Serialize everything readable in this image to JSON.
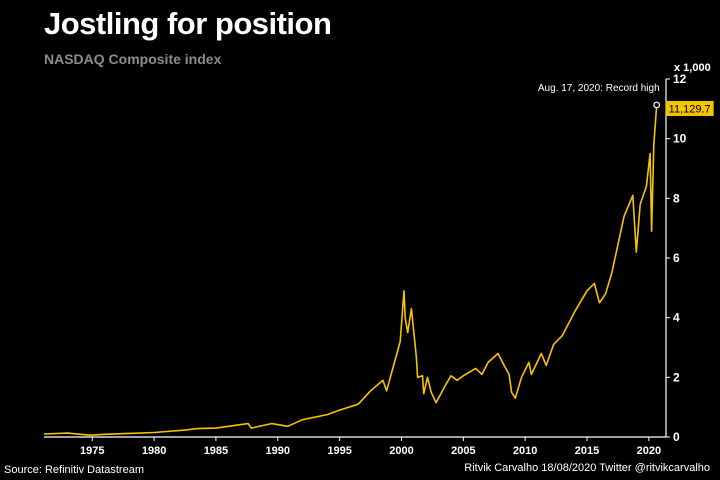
{
  "header": {
    "title": "Jostling for position",
    "subtitle": "NASDAQ Composite index"
  },
  "footer": {
    "source": "Source: Refinitiv Datastream",
    "credit": "Ritvik Carvalho 18/08/2020 Twitter @ritvikcarvalho"
  },
  "colors": {
    "background": "#000000",
    "line": "#f5c400",
    "badge": "#f5c400",
    "subtitle": "#8c8c8c"
  },
  "chart_data": {
    "type": "line",
    "title": "Jostling for position",
    "subtitle": "NASDAQ Composite index",
    "y_unit_label": "x 1,000",
    "xlim": [
      1971.1,
      2020.9
    ],
    "ylim": [
      0,
      12
    ],
    "x_ticks": [
      1975,
      1980,
      1985,
      1990,
      1995,
      2000,
      2005,
      2010,
      2015,
      2020
    ],
    "y_ticks": [
      0,
      2,
      4,
      6,
      8,
      10,
      12
    ],
    "grid": false,
    "annotation": {
      "x": 2020.63,
      "y": 11.1297,
      "text": "Aug. 17, 2020: Record high",
      "value_label": "11,129.7"
    },
    "series": [
      {
        "x": [
          1971.1,
          1973.0,
          1974.8,
          1976.0,
          1978.0,
          1980.0,
          1982.5,
          1983.5,
          1985.0,
          1987.6,
          1987.85,
          1989.5,
          1990.8,
          1992.0,
          1994.0,
          1995.0,
          1996.5,
          1997.5,
          1998.5,
          1998.8,
          1999.5,
          1999.9,
          2000.2,
          2000.3,
          2000.5,
          2000.8,
          2001.2,
          2001.3,
          2001.7,
          2001.8,
          2002.1,
          2002.4,
          2002.8,
          2003.5,
          2004.0,
          2004.5,
          2005.0,
          2006.0,
          2006.5,
          2007.0,
          2007.8,
          2008.3,
          2008.7,
          2008.9,
          2009.2,
          2009.7,
          2010.3,
          2010.5,
          2011.3,
          2011.7,
          2012.3,
          2013.0,
          2014.0,
          2015.0,
          2015.6,
          2016.0,
          2016.5,
          2017.0,
          2018.0,
          2018.7,
          2018.98,
          2019.3,
          2019.8,
          2020.1,
          2020.22,
          2020.4,
          2020.63
        ],
        "values": [
          0.1,
          0.13,
          0.06,
          0.09,
          0.12,
          0.15,
          0.23,
          0.28,
          0.3,
          0.45,
          0.3,
          0.45,
          0.36,
          0.58,
          0.75,
          0.9,
          1.1,
          1.55,
          1.9,
          1.55,
          2.6,
          3.2,
          4.9,
          4.0,
          3.5,
          4.3,
          2.7,
          2.0,
          2.05,
          1.45,
          2.0,
          1.5,
          1.15,
          1.7,
          2.05,
          1.9,
          2.05,
          2.3,
          2.1,
          2.5,
          2.8,
          2.4,
          2.1,
          1.5,
          1.3,
          2.0,
          2.5,
          2.1,
          2.8,
          2.4,
          3.1,
          3.4,
          4.2,
          4.9,
          5.15,
          4.5,
          4.8,
          5.5,
          7.4,
          8.1,
          6.2,
          7.8,
          8.4,
          9.5,
          6.9,
          9.8,
          11.13
        ]
      }
    ]
  }
}
